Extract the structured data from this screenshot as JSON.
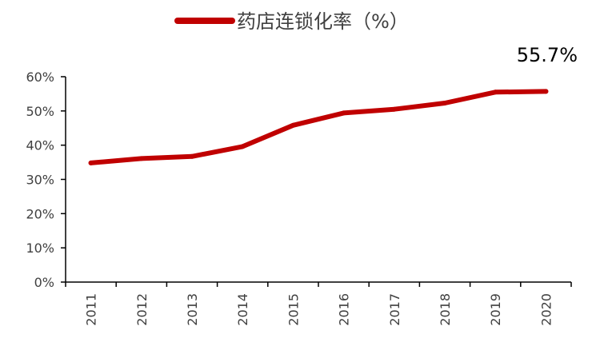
{
  "chart_data": {
    "type": "line",
    "categories": [
      "2011",
      "2012",
      "2013",
      "2014",
      "2015",
      "2016",
      "2017",
      "2018",
      "2019",
      "2020"
    ],
    "series": [
      {
        "name": "药店连锁化率（%）",
        "values": [
          34.8,
          36.1,
          36.7,
          39.6,
          45.8,
          49.4,
          50.5,
          52.3,
          55.5,
          55.7
        ],
        "color": "#C00000"
      }
    ],
    "ylim": [
      0,
      60
    ],
    "yticks": [
      "0%",
      "10%",
      "20%",
      "30%",
      "40%",
      "50%",
      "60%"
    ],
    "data_label": "55.7%",
    "legend_position": "top",
    "grid": false
  }
}
